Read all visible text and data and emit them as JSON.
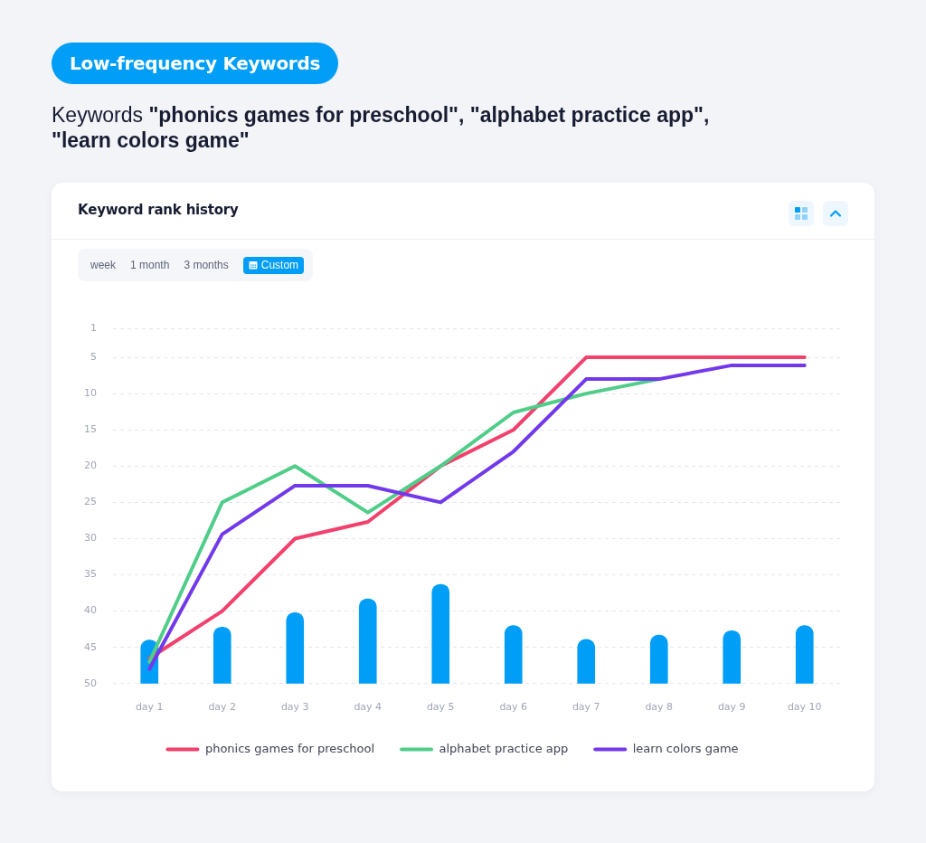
{
  "chart_data": {
    "type": "line",
    "title": "Keyword rank history",
    "subtitle": "Keywords \"phonics games for preschool\", \"alphabet practice app\", \"learn colors game\"",
    "annotations": [
      "Low-frequency Keywords",
      "week",
      "1 month",
      "3 months",
      "Custom"
    ],
    "categories": [
      "day 1",
      "day 2",
      "day 3",
      "day 4",
      "day 5",
      "day 6",
      "day 7",
      "day 8",
      "day 9",
      "day 10"
    ],
    "series": [
      {
        "type": "bar",
        "color": "#009ef7",
        "base": [
          50,
          50,
          50,
          50,
          50,
          50,
          50,
          50,
          50,
          50
        ],
        "values": [
          -6,
          -7.8,
          -9.8,
          -11.7,
          -13.7,
          -8,
          -6.1,
          -6.7,
          -7.3,
          -8
        ]
      },
      {
        "name": "phonics games for preschool",
        "color": "#f1416c",
        "values": [
          46.5,
          40,
          30,
          27.7,
          20,
          15,
          5,
          5,
          5,
          5
        ]
      },
      {
        "name": "alphabet practice app",
        "color": "#50cd89",
        "values": [
          47,
          25,
          20,
          26.4,
          20,
          12.6,
          10,
          8,
          null,
          null
        ]
      },
      {
        "name": "learn colors game",
        "color": "#7239ea",
        "values": [
          48,
          29.4,
          22.7,
          22.7,
          25,
          18,
          8,
          8,
          6.1,
          6.1
        ]
      }
    ],
    "ylim": [
      50,
      1
    ],
    "yticks": [
      1,
      5,
      10,
      15,
      20,
      25,
      30,
      35,
      40,
      45,
      50
    ],
    "grid": "y",
    "legend": "bottom",
    "marker": "none",
    "line_style": "solid"
  }
}
